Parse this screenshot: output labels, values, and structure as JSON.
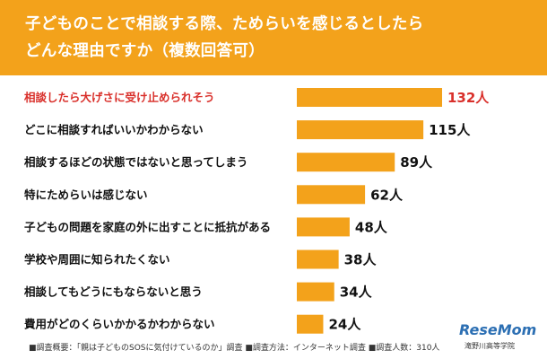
{
  "header": {
    "title_line1": "子どものことで相談する際、ためらいを感じるとしたら",
    "title_line2": "どんな理由ですか（複数回答可）"
  },
  "colors": {
    "header_bg": "#f3a21b",
    "bar": "#f3a21b",
    "highlight_text": "#d9302b",
    "label_text": "#111111"
  },
  "chart_data": {
    "type": "bar",
    "orientation": "horizontal",
    "title": "子どものことで相談する際、ためらいを感じるとしたらどんな理由ですか（複数回答可）",
    "categories": [
      "相談したら大げさに受け止められそう",
      "どこに相談すればいいかわからない",
      "相談するほどの状態ではないと思ってしまう",
      "特にためらいは感じない",
      "子どもの問題を家庭の外に出すことに抵抗がある",
      "学校や周囲に知られたくない",
      "相談してもどうにもならないと思う",
      "費用がどのくらいかかるかわからない"
    ],
    "values": [
      132,
      115,
      89,
      62,
      48,
      38,
      34,
      24
    ],
    "value_labels": [
      "132人",
      "115人",
      "89人",
      "62人",
      "48人",
      "38人",
      "34人",
      "24人"
    ],
    "highlighted_index": 0,
    "xlim": [
      0,
      132
    ],
    "grid": false,
    "legend": "none"
  },
  "footnote": "■調査概要：「親は子どものSOSに気付けているのか」調査 ■調査方法：インターネット調査 ■調査人数：310人",
  "logo": {
    "brand": "ReseMom",
    "credit": "滝野川高等学院"
  }
}
